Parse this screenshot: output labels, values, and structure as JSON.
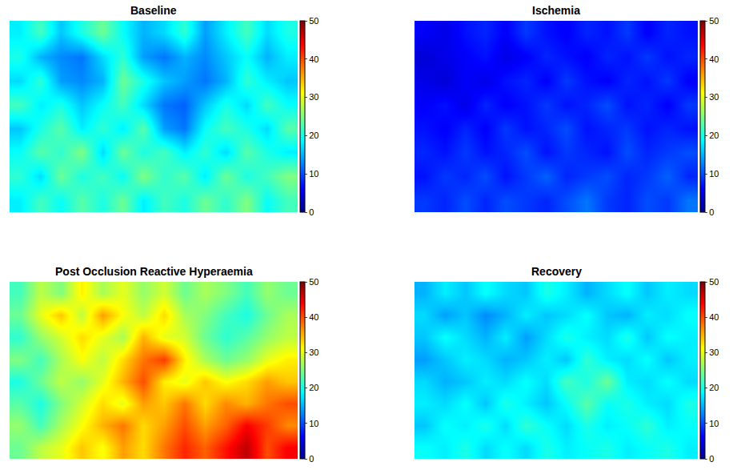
{
  "chart_data": [
    {
      "type": "heatmap",
      "title": "Baseline",
      "color": "jet",
      "tick_labels": false,
      "zlim": [
        0,
        50
      ],
      "zticks": [
        0,
        10,
        20,
        30,
        40,
        50
      ],
      "z": [
        [
          18,
          22,
          16,
          20,
          24,
          19,
          15,
          17,
          21,
          14,
          18,
          22,
          17,
          20
        ],
        [
          20,
          15,
          13,
          12,
          17,
          21,
          14,
          12,
          15,
          13,
          16,
          19,
          15,
          18
        ],
        [
          17,
          21,
          14,
          13,
          15,
          24,
          20,
          16,
          14,
          12,
          15,
          21,
          18,
          16
        ],
        [
          22,
          18,
          20,
          16,
          19,
          22,
          17,
          12,
          11,
          16,
          20,
          17,
          22,
          19
        ],
        [
          16,
          20,
          23,
          18,
          21,
          18,
          23,
          14,
          12,
          19,
          22,
          20,
          17,
          23
        ],
        [
          19,
          23,
          21,
          25,
          17,
          24,
          20,
          22,
          18,
          21,
          17,
          23,
          20,
          18
        ],
        [
          21,
          17,
          24,
          20,
          22,
          19,
          25,
          21,
          23,
          18,
          24,
          20,
          22,
          25
        ],
        [
          18,
          22,
          19,
          23,
          20,
          24,
          18,
          22,
          20,
          24,
          21,
          25,
          19,
          22
        ]
      ]
    },
    {
      "type": "heatmap",
      "title": "Ischemia",
      "color": "jet",
      "tick_labels": false,
      "zlim": [
        0,
        50
      ],
      "zticks": [
        0,
        10,
        20,
        30,
        40,
        50
      ],
      "z": [
        [
          6,
          5,
          7,
          8,
          6,
          9,
          7,
          6,
          8,
          7,
          9,
          6,
          8,
          7
        ],
        [
          4,
          5,
          6,
          7,
          5,
          6,
          8,
          7,
          6,
          8,
          7,
          9,
          7,
          8
        ],
        [
          5,
          4,
          6,
          5,
          7,
          8,
          6,
          9,
          7,
          6,
          8,
          7,
          9,
          6
        ],
        [
          6,
          7,
          5,
          8,
          6,
          7,
          9,
          7,
          8,
          10,
          7,
          8,
          6,
          9
        ],
        [
          7,
          6,
          8,
          6,
          9,
          7,
          8,
          10,
          7,
          8,
          9,
          7,
          8,
          7
        ],
        [
          8,
          7,
          9,
          7,
          8,
          10,
          7,
          9,
          8,
          7,
          10,
          8,
          9,
          10
        ],
        [
          7,
          9,
          8,
          10,
          7,
          9,
          11,
          8,
          9,
          10,
          8,
          9,
          11,
          8
        ],
        [
          9,
          8,
          10,
          8,
          10,
          9,
          8,
          10,
          12,
          9,
          8,
          10,
          9,
          12
        ]
      ]
    },
    {
      "type": "heatmap",
      "title": "Post Occlusion Reactive Hyperaemia",
      "color": "jet",
      "tick_labels": false,
      "zlim": [
        0,
        50
      ],
      "zticks": [
        0,
        10,
        20,
        30,
        40,
        50
      ],
      "z": [
        [
          22,
          28,
          25,
          32,
          27,
          30,
          26,
          29,
          24,
          27,
          25,
          22,
          26,
          24
        ],
        [
          24,
          30,
          34,
          28,
          36,
          31,
          28,
          33,
          27,
          25,
          22,
          20,
          24,
          27
        ],
        [
          21,
          26,
          29,
          33,
          30,
          27,
          35,
          30,
          29,
          24,
          21,
          23,
          26,
          28
        ],
        [
          25,
          22,
          27,
          31,
          28,
          33,
          38,
          41,
          32,
          27,
          24,
          26,
          30,
          32
        ],
        [
          20,
          24,
          28,
          26,
          30,
          35,
          40,
          32,
          30,
          34,
          31,
          33,
          36,
          34
        ],
        [
          23,
          20,
          25,
          29,
          33,
          30,
          36,
          34,
          38,
          33,
          37,
          35,
          38,
          40
        ],
        [
          26,
          22,
          27,
          31,
          35,
          38,
          33,
          36,
          40,
          36,
          39,
          44,
          41,
          37
        ],
        [
          24,
          28,
          30,
          34,
          31,
          36,
          33,
          38,
          42,
          39,
          43,
          47,
          40,
          44
        ]
      ]
    },
    {
      "type": "heatmap",
      "title": "Recovery",
      "color": "jet",
      "tick_labels": false,
      "zlim": [
        0,
        50
      ],
      "zticks": [
        0,
        10,
        20,
        30,
        40,
        50
      ],
      "z": [
        [
          15,
          18,
          16,
          19,
          17,
          16,
          20,
          18,
          15,
          17,
          19,
          16,
          18,
          17
        ],
        [
          17,
          14,
          16,
          13,
          15,
          18,
          16,
          17,
          19,
          16,
          15,
          18,
          17,
          19
        ],
        [
          16,
          19,
          17,
          15,
          18,
          14,
          17,
          20,
          18,
          17,
          20,
          16,
          19,
          18
        ],
        [
          14,
          16,
          18,
          17,
          15,
          16,
          18,
          16,
          21,
          18,
          17,
          19,
          16,
          18
        ],
        [
          17,
          15,
          16,
          18,
          17,
          19,
          17,
          22,
          20,
          24,
          18,
          17,
          19,
          17
        ],
        [
          18,
          17,
          19,
          16,
          20,
          18,
          16,
          19,
          23,
          19,
          20,
          18,
          17,
          20
        ],
        [
          16,
          19,
          18,
          20,
          17,
          21,
          19,
          17,
          20,
          18,
          19,
          21,
          18,
          19
        ],
        [
          19,
          18,
          20,
          17,
          19,
          17,
          20,
          18,
          19,
          20,
          18,
          19,
          20,
          18
        ]
      ]
    }
  ]
}
